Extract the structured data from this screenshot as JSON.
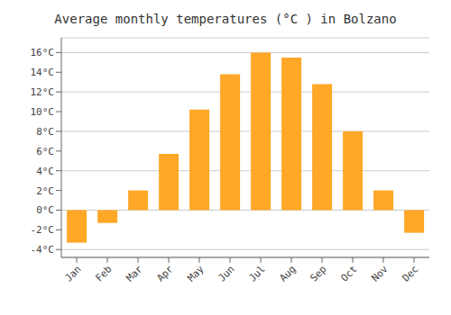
{
  "chart_data": {
    "type": "bar",
    "title": "Average monthly temperatures (°C ) in Bolzano",
    "categories": [
      "Jan",
      "Feb",
      "Mar",
      "Apr",
      "May",
      "Jun",
      "Jul",
      "Aug",
      "Sep",
      "Oct",
      "Nov",
      "Dec"
    ],
    "values": [
      -3.3,
      -1.3,
      2.0,
      5.7,
      10.2,
      13.8,
      16.0,
      15.5,
      12.8,
      8.0,
      2.0,
      -2.3
    ],
    "color": "#FFA726",
    "ylim": [
      -4.8,
      17.5
    ],
    "yticks": [
      {
        "value": -4,
        "label": "-4°C"
      },
      {
        "value": -2,
        "label": "-2°C"
      },
      {
        "value": 0,
        "label": "0°C"
      },
      {
        "value": 2,
        "label": "2°C"
      },
      {
        "value": 4,
        "label": "4°C"
      },
      {
        "value": 6,
        "label": "6°C"
      },
      {
        "value": 8,
        "label": "8°C"
      },
      {
        "value": 10,
        "label": "10°C"
      },
      {
        "value": 12,
        "label": "12°C"
      },
      {
        "value": 14,
        "label": "14°C"
      },
      {
        "value": 16,
        "label": "16°C"
      }
    ],
    "grid": true
  }
}
